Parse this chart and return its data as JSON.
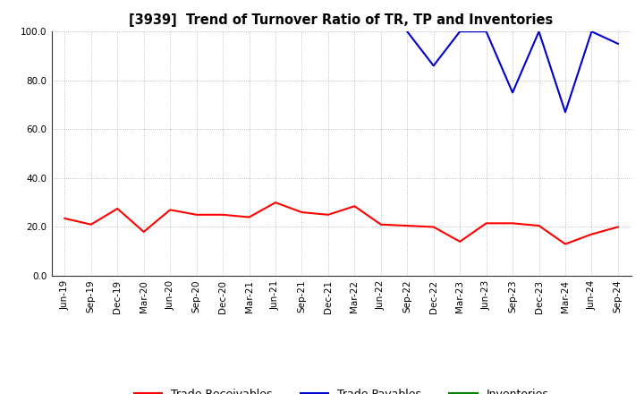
{
  "title": "[3939]  Trend of Turnover Ratio of TR, TP and Inventories",
  "ylim": [
    0.0,
    100.0
  ],
  "ytick_labels": [
    "0.0",
    "20.0",
    "40.0",
    "60.0",
    "80.0",
    "100.0"
  ],
  "ytick_values": [
    0.0,
    20.0,
    40.0,
    60.0,
    80.0,
    100.0
  ],
  "x_labels": [
    "Jun-19",
    "Sep-19",
    "Dec-19",
    "Mar-20",
    "Jun-20",
    "Sep-20",
    "Dec-20",
    "Mar-21",
    "Jun-21",
    "Sep-21",
    "Dec-21",
    "Mar-22",
    "Jun-22",
    "Sep-22",
    "Dec-22",
    "Mar-23",
    "Jun-23",
    "Sep-23",
    "Dec-23",
    "Mar-24",
    "Jun-24",
    "Sep-24"
  ],
  "trade_receivables": [
    23.5,
    21.0,
    27.5,
    18.0,
    27.0,
    25.0,
    25.0,
    24.0,
    30.0,
    26.0,
    25.0,
    28.5,
    21.0,
    20.5,
    20.0,
    14.0,
    21.5,
    21.5,
    20.5,
    13.0,
    17.0,
    20.0
  ],
  "trade_payables": [
    null,
    null,
    null,
    null,
    null,
    null,
    null,
    null,
    null,
    null,
    null,
    null,
    null,
    100.0,
    86.0,
    100.0,
    100.0,
    75.0,
    100.0,
    67.0,
    100.0,
    95.0
  ],
  "inventories": [
    null,
    null,
    null,
    null,
    null,
    null,
    null,
    null,
    null,
    null,
    null,
    null,
    null,
    null,
    null,
    null,
    null,
    null,
    null,
    null,
    null,
    null
  ],
  "tr_color": "#ff0000",
  "tp_color": "#0000cc",
  "inv_color": "#008000",
  "bg_color": "#ffffff",
  "grid_color": "#aaaaaa",
  "title_fontsize": 10.5,
  "tick_fontsize": 7.5,
  "legend_fontsize": 9,
  "linewidth": 1.5
}
